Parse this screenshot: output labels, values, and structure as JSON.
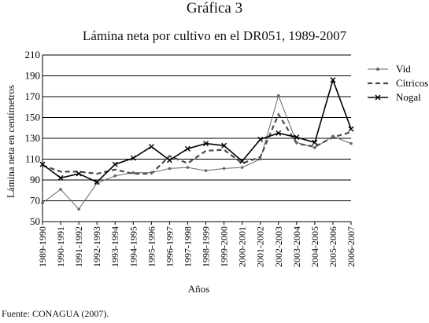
{
  "figure_label": "Gráfica 3",
  "source_note": "Fuente: CONAGUA (2007).",
  "chart_data": {
    "type": "line",
    "title": "Lámina neta por cultivo en el DR051, 1989-2007",
    "xlabel": "Años",
    "ylabel": "Lámina neta en centímetros",
    "ylim": [
      50,
      210
    ],
    "yticks": [
      50,
      70,
      90,
      110,
      130,
      150,
      170,
      190,
      210
    ],
    "grid": true,
    "legend_position": "right",
    "categories": [
      "1989-1990",
      "1990-1991",
      "1991-1992",
      "1992-1993",
      "1993-1994",
      "1994-1995",
      "1995-1996",
      "1996-1997",
      "1997-1998",
      "1998-1999",
      "1999-2000",
      "2000-2001",
      "2001-2002",
      "2002-2003",
      "2003-2004",
      "2004-2005",
      "2005-2006",
      "2006-2007"
    ],
    "series": [
      {
        "name": "Vid",
        "marker": "dot",
        "dash": "solid",
        "color": "#666666",
        "values": [
          68,
          81,
          62,
          87,
          94,
          97,
          97,
          101,
          102,
          99,
          101,
          102,
          110,
          171,
          126,
          121,
          132,
          125
        ]
      },
      {
        "name": "Cítricos",
        "marker": "none",
        "dash": "dashed",
        "color": "#4a4a4a",
        "values": [
          104,
          98,
          98,
          96,
          100,
          96,
          96,
          113,
          106,
          118,
          119,
          106,
          112,
          153,
          125,
          122,
          131,
          136
        ]
      },
      {
        "name": "Nogal",
        "marker": "x",
        "dash": "solid",
        "color": "#000000",
        "values": [
          105,
          92,
          96,
          88,
          105,
          111,
          122,
          109,
          120,
          125,
          123,
          108,
          129,
          135,
          131,
          126,
          186,
          139
        ]
      }
    ]
  }
}
